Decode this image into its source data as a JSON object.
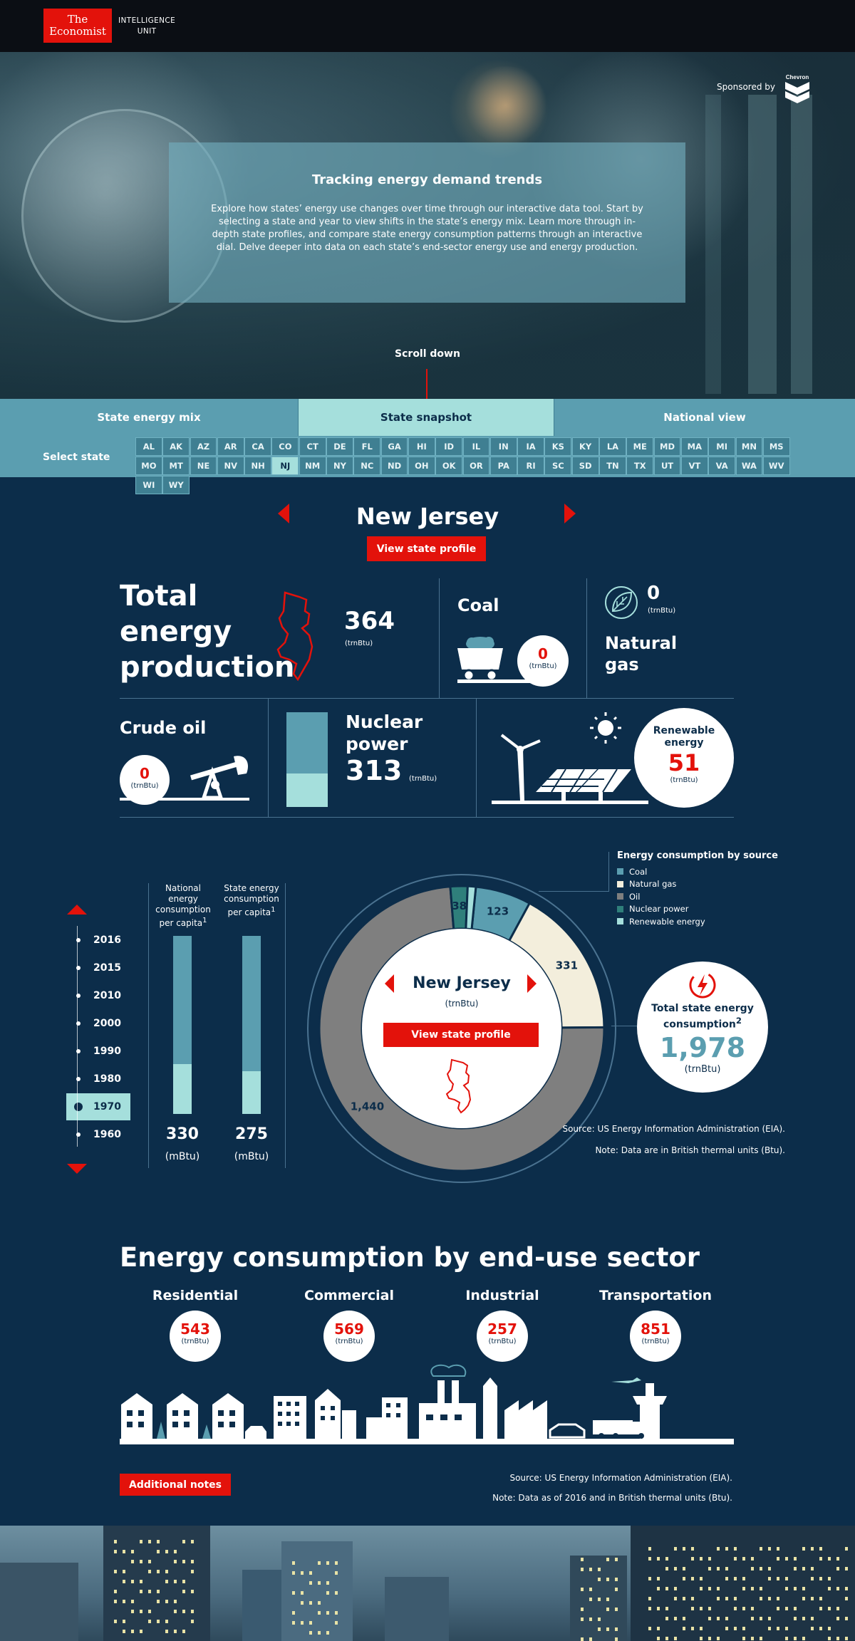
{
  "header": {
    "logo_line1": "The",
    "logo_line2": "Economist",
    "eiu_line1": "INTELLIGENCE",
    "eiu_line2": "UNIT",
    "sponsor_label": "Sponsored by",
    "sponsor_brand": "Chevron"
  },
  "intro": {
    "title": "Tracking energy demand trends",
    "text": "Explore how states’ energy use changes over time through our interactive data tool. Start by selecting a state and year to view shifts in the state’s energy mix. Learn more through in-depth state profiles, and compare state energy consumption patterns through an interactive dial. Delve deeper into data on each state’s end-sector energy use and energy production.",
    "scroll_label": "Scroll down"
  },
  "tabs": [
    {
      "label": "State energy mix",
      "active": false
    },
    {
      "label": "State snapshot",
      "active": true
    },
    {
      "label": "National view",
      "active": false
    }
  ],
  "state_selector": {
    "label": "Select state",
    "active": "NJ",
    "states": [
      "AL",
      "AK",
      "AZ",
      "AR",
      "CA",
      "CO",
      "CT",
      "DE",
      "FL",
      "GA",
      "HI",
      "ID",
      "IL",
      "IN",
      "IA",
      "KS",
      "KY",
      "LA",
      "ME",
      "MD",
      "MA",
      "MI",
      "MN",
      "MS",
      "MO",
      "MT",
      "NE",
      "NV",
      "NH",
      "NJ",
      "NM",
      "NY",
      "NC",
      "ND",
      "OH",
      "OK",
      "OR",
      "PA",
      "RI",
      "SC",
      "SD",
      "TN",
      "TX",
      "UT",
      "VT",
      "VA",
      "WA",
      "WV",
      "WI",
      "WY"
    ]
  },
  "state": {
    "name": "New Jersey",
    "profile_button": "View state profile"
  },
  "production": {
    "title": "Total energy production",
    "total": "364",
    "unit": "(trnBtu)",
    "coal_label": "Coal",
    "coal_value": "0",
    "natural_gas_label": "Natural gas",
    "natural_gas_value": "0",
    "crude_oil_label": "Crude oil",
    "crude_oil_value": "0",
    "nuclear_label": "Nuclear power",
    "nuclear_value": "313",
    "nuclear_fill": 0.35,
    "renewable_label": "Renewable energy",
    "renewable_value": "51"
  },
  "consumption": {
    "years": [
      "2016",
      "2015",
      "2010",
      "2000",
      "1990",
      "1980",
      "1970",
      "1960"
    ],
    "active_year": "1970",
    "national_head": "National energy consumption per capita",
    "state_head": "State energy consumption per capita",
    "national_value": "330",
    "state_value": "275",
    "per_capita_unit": "(mBtu)",
    "national_fill": 0.28,
    "state_fill": 0.24,
    "superscript": "1",
    "total_label": "Total state energy consumption",
    "total_superscript": "2",
    "total_value": "1,978",
    "total_unit": "(trnBtu)",
    "dial_state": "New Jersey",
    "dial_unit": "(trnBtu)",
    "dial_button": "View state profile",
    "source": "Source: US Energy Information Administration (EIA).",
    "note": "Note: Data are in British thermal units (Btu)."
  },
  "chart_data": {
    "type": "pie",
    "title": "Energy consumption by source",
    "categories": [
      "Coal",
      "Natural gas",
      "Oil",
      "Nuclear power",
      "Renewable energy"
    ],
    "values": [
      123,
      331,
      1440,
      38,
      18
    ],
    "labels": [
      "123",
      "331",
      "1,440",
      "38",
      ""
    ],
    "colors": [
      "#5b9eb0",
      "#f3eedc",
      "#7f7f7f",
      "#2f7f7b",
      "#a5dfdc"
    ]
  },
  "end_use": {
    "title": "Energy consumption by end-use sector",
    "unit": "(trnBtu)",
    "sectors": [
      {
        "label": "Residential",
        "value": "543"
      },
      {
        "label": "Commercial",
        "value": "569"
      },
      {
        "label": "Industrial",
        "value": "257"
      },
      {
        "label": "Transportation",
        "value": "851"
      }
    ],
    "notes_button": "Additional notes",
    "source": "Source: US Energy Information Administration (EIA).",
    "note": "Note: Data as of 2016 and in British thermal units (Btu)."
  },
  "colors": {
    "accent_red": "#e3120b",
    "navy": "#0c2d4a",
    "teal": "#5b9eb0",
    "light_teal": "#a5dfdc"
  }
}
